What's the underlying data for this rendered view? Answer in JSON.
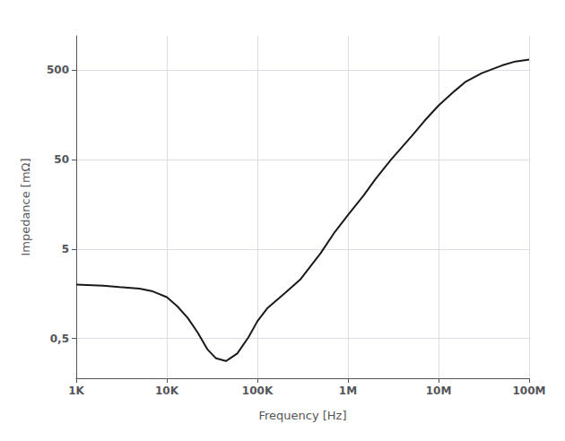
{
  "chart_data": {
    "type": "line",
    "x": [
      1000,
      2000,
      3000,
      5000,
      7000,
      10000,
      13000,
      17000,
      22000,
      28000,
      35000,
      45000,
      60000,
      80000,
      100000,
      130000,
      200000,
      300000,
      500000,
      700000,
      1000000,
      1500000,
      2000000,
      3000000,
      5000000,
      7000000,
      10000000,
      15000000,
      20000000,
      30000000,
      50000000,
      70000000,
      100000000
    ],
    "values": [
      2.0,
      1.95,
      1.88,
      1.8,
      1.68,
      1.45,
      1.15,
      0.85,
      0.58,
      0.38,
      0.3,
      0.28,
      0.34,
      0.52,
      0.78,
      1.1,
      1.6,
      2.3,
      4.5,
      7.5,
      12.0,
      20.0,
      30.0,
      50.0,
      90.0,
      135.0,
      200.0,
      290.0,
      370.0,
      460.0,
      560.0,
      620.0,
      650.0
    ],
    "color": "#1a1a1a",
    "xlabel": "Frequency [Hz]",
    "ylabel": "Impedance [mΩ]",
    "log": true,
    "xlim": [
      1000,
      100000000
    ],
    "ylim": [
      0.18,
      1200
    ],
    "xticks": [
      {
        "value": 1000,
        "label": "1K"
      },
      {
        "value": 10000,
        "label": "10K"
      },
      {
        "value": 100000,
        "label": "100K"
      },
      {
        "value": 1000000,
        "label": "1M"
      },
      {
        "value": 10000000,
        "label": "10M"
      },
      {
        "value": 100000000,
        "label": "100M"
      }
    ],
    "yticks": [
      {
        "value": 0.5,
        "label": "0,5"
      },
      5,
      50,
      500
    ],
    "grid": true
  }
}
